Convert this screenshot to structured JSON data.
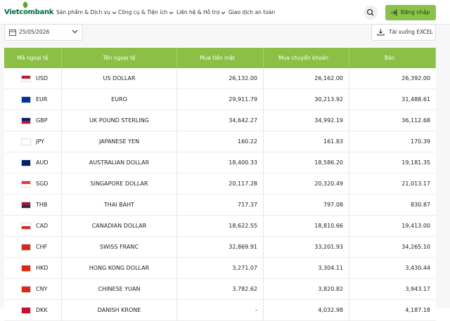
{
  "header": {
    "logo": "Vietcombank",
    "nav": [
      "Sản phẩm & Dịch vụ",
      "Công cụ & Tiện ích",
      "Liên hệ & Hỗ trợ",
      "Giao dịch an toàn"
    ],
    "login": "Đăng nhập"
  },
  "toolbar": {
    "date": "25/05/2026",
    "export": "Tải xuống EXCEL"
  },
  "table": {
    "headers": [
      "Mã ngoại tệ",
      "Tên ngoại tệ",
      "Mua tiền mặt",
      "Mua chuyển khoản",
      "Bán"
    ],
    "rows": [
      [
        "USD",
        "US DOLLAR",
        "26,132.00",
        "26,162.00",
        "26,392.00"
      ],
      [
        "EUR",
        "EURO",
        "29,911.79",
        "30,213.92",
        "31,488.61"
      ],
      [
        "GBP",
        "UK POUND STERLING",
        "34,642.27",
        "34,992.19",
        "36,112.68"
      ],
      [
        "JPY",
        "JAPANESE YEN",
        "160.22",
        "161.83",
        "170.39"
      ],
      [
        "AUD",
        "AUSTRALIAN DOLLAR",
        "18,400.33",
        "18,586.20",
        "19,181.35"
      ],
      [
        "SGD",
        "SINGAPORE DOLLAR",
        "20,117.28",
        "20,320.49",
        "21,013.17"
      ],
      [
        "THB",
        "THAI BAHT",
        "717.37",
        "797.08",
        "830.87"
      ],
      [
        "CAD",
        "CANADIAN DOLLAR",
        "18,622.55",
        "18,810.66",
        "19,413.00"
      ],
      [
        "CHF",
        "SWISS FRANC",
        "32,869.91",
        "33,201.93",
        "34,265.10"
      ],
      [
        "HKD",
        "HONG KONG DOLLAR",
        "3,271.07",
        "3,304.11",
        "3,430.44"
      ],
      [
        "CNY",
        "CHINESE YUAN",
        "3,782.62",
        "3,820.82",
        "3,943.17"
      ],
      [
        "DKK",
        "DANISH KRONE",
        "-",
        "4,032.98",
        "4,187.18"
      ]
    ]
  }
}
